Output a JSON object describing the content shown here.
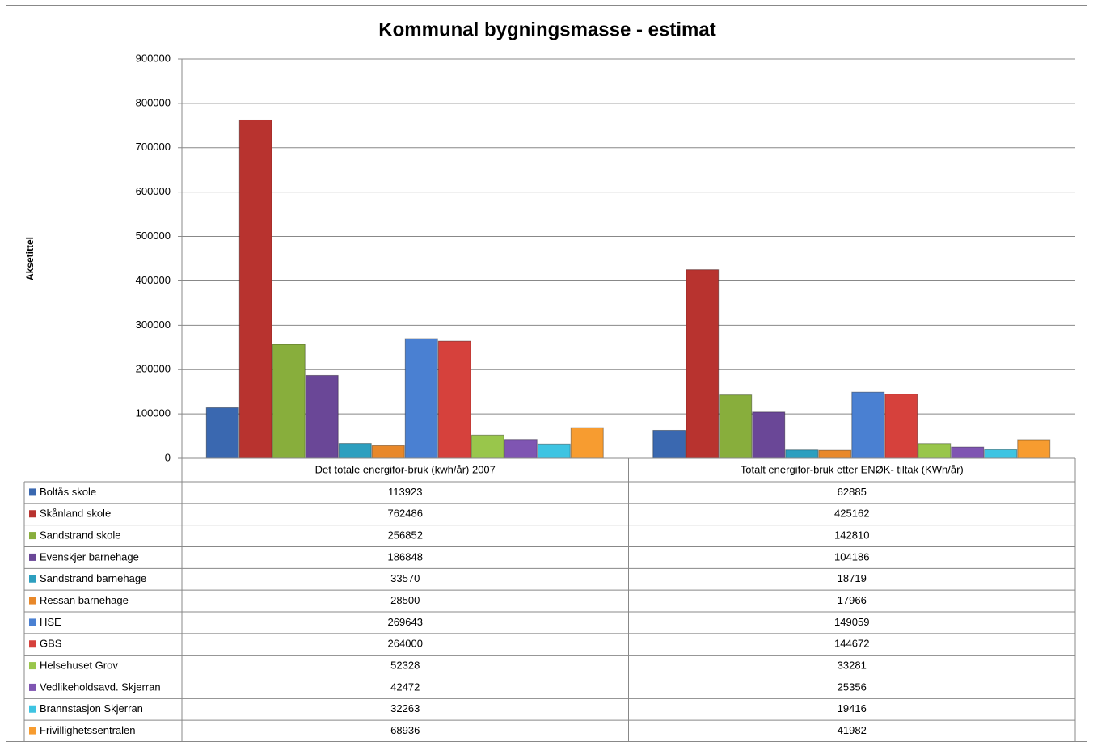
{
  "chart_data": {
    "type": "bar",
    "title": "Kommunal bygningsmasse - estimat",
    "y_label": "Aksetittel",
    "categories": [
      "Det totale energifor-bruk (kwh/år) 2007",
      "Totalt energifor-bruk etter ENØK- tiltak     (KWh/år)"
    ],
    "ylim": [
      0,
      900000
    ],
    "yticks": [
      0,
      100000,
      200000,
      300000,
      400000,
      500000,
      600000,
      700000,
      800000,
      900000
    ],
    "grid": true,
    "series": [
      {
        "name": "Boltås skole",
        "color": "#3a68b0",
        "values": [
          113923,
          62885
        ]
      },
      {
        "name": "Skånland skole",
        "color": "#b8332f",
        "values": [
          762486,
          425162
        ]
      },
      {
        "name": "Sandstrand skole",
        "color": "#88ae3c",
        "values": [
          256852,
          142810
        ]
      },
      {
        "name": "Evenskjer barnehage",
        "color": "#6a4797",
        "values": [
          186848,
          104186
        ]
      },
      {
        "name": "Sandstrand barnehage",
        "color": "#2d9fbf",
        "values": [
          33570,
          18719
        ]
      },
      {
        "name": "Ressan barnehage",
        "color": "#e8882a",
        "values": [
          28500,
          17966
        ]
      },
      {
        "name": "HSE",
        "color": "#4a80d2",
        "values": [
          269643,
          149059
        ]
      },
      {
        "name": "GBS",
        "color": "#d6413c",
        "values": [
          264000,
          144672
        ]
      },
      {
        "name": "Helsehuset Grov",
        "color": "#99c64b",
        "values": [
          52328,
          33281
        ]
      },
      {
        "name": "Vedlikeholdsavd. Skjerran",
        "color": "#7f55b2",
        "values": [
          42472,
          25356
        ]
      },
      {
        "name": "Brannstasjon Skjerran",
        "color": "#3ec4e2",
        "values": [
          32263,
          19416
        ]
      },
      {
        "name": "Frivillighetssentralen",
        "color": "#f79c30",
        "values": [
          68936,
          41982
        ]
      }
    ]
  }
}
